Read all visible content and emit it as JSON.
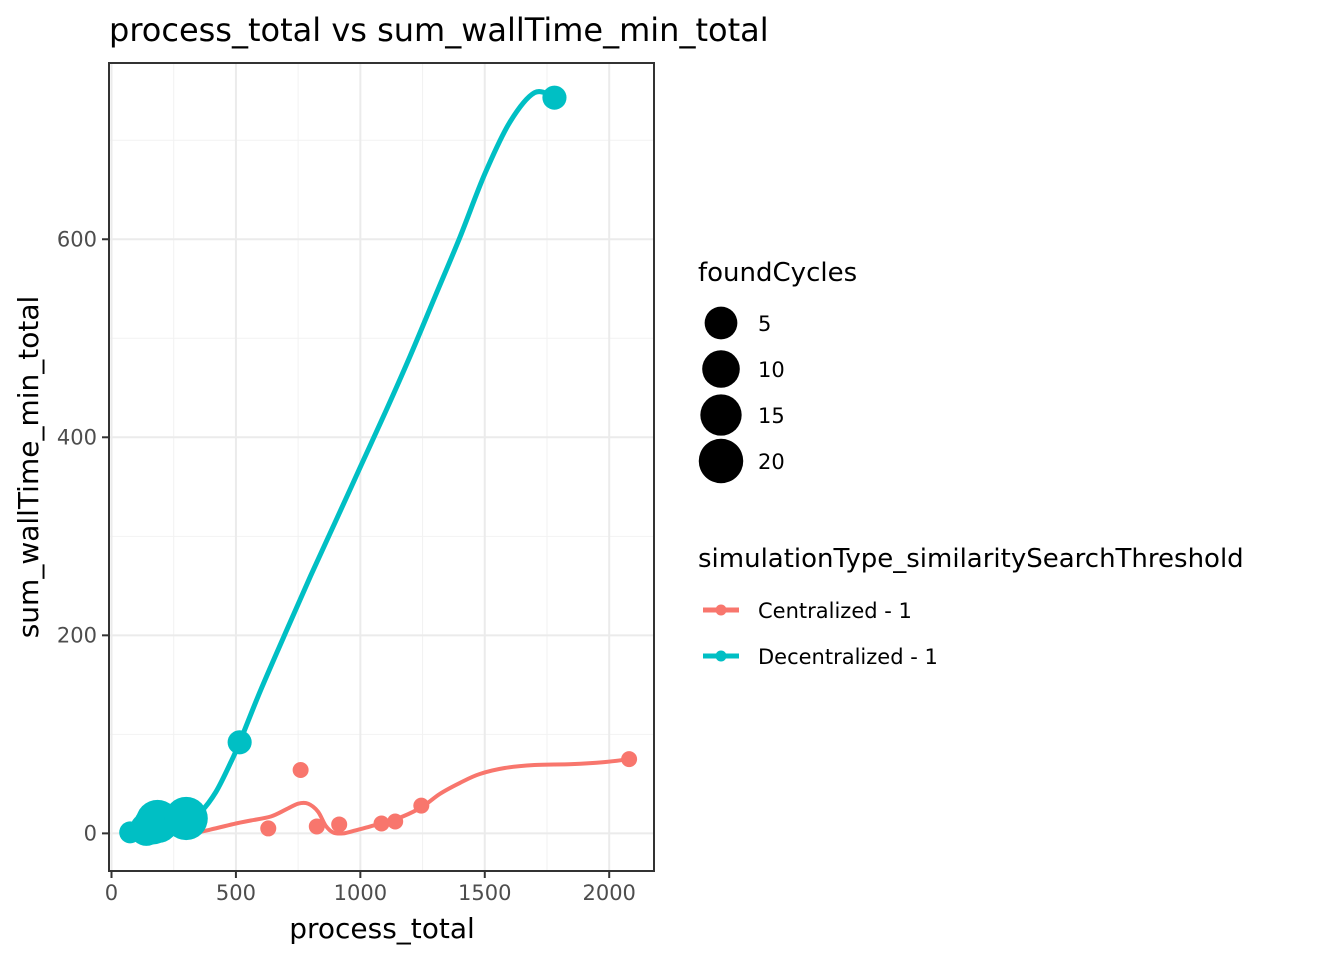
{
  "chart_data": {
    "type": "scatter",
    "title": "process_total  vs  sum_wallTime_min_total",
    "xlabel": "process_total",
    "ylabel": "sum_wallTime_min_total",
    "xlim": [
      -10,
      2180
    ],
    "ylim": [
      -38,
      778
    ],
    "x_ticks": [
      0,
      500,
      1000,
      1500,
      2000
    ],
    "y_ticks": [
      0,
      200,
      400,
      600
    ],
    "x_tick_labels": [
      "0",
      "500",
      "1000",
      "1500",
      "2000"
    ],
    "y_tick_labels": [
      "0",
      "200",
      "400",
      "600"
    ],
    "grid": true,
    "size_legend": {
      "title": "foundCycles",
      "entries": [
        {
          "label": "5",
          "value": 5
        },
        {
          "label": "10",
          "value": 10
        },
        {
          "label": "15",
          "value": 15
        },
        {
          "label": "20",
          "value": 20
        }
      ]
    },
    "color_legend": {
      "title": "simulationType_similaritySearchThreshold",
      "placement": "right"
    },
    "series": [
      {
        "name": "Centralized - 1",
        "color": "#F8766D",
        "points": [
          {
            "x": 630,
            "y": 5,
            "size": 1
          },
          {
            "x": 760,
            "y": 64,
            "size": 1
          },
          {
            "x": 825,
            "y": 7,
            "size": 1
          },
          {
            "x": 915,
            "y": 9,
            "size": 1
          },
          {
            "x": 1085,
            "y": 10,
            "size": 1
          },
          {
            "x": 1140,
            "y": 12,
            "size": 1
          },
          {
            "x": 1245,
            "y": 28,
            "size": 1
          },
          {
            "x": 2080,
            "y": 75,
            "size": 1
          }
        ],
        "smooth": [
          [
            330,
            0
          ],
          [
            400,
            4
          ],
          [
            500,
            10
          ],
          [
            560,
            13
          ],
          [
            640,
            17
          ],
          [
            700,
            24
          ],
          [
            750,
            30
          ],
          [
            790,
            30
          ],
          [
            830,
            22
          ],
          [
            860,
            8
          ],
          [
            890,
            1
          ],
          [
            930,
            0
          ],
          [
            980,
            3
          ],
          [
            1040,
            7
          ],
          [
            1100,
            11
          ],
          [
            1170,
            17
          ],
          [
            1250,
            27
          ],
          [
            1320,
            40
          ],
          [
            1400,
            51
          ],
          [
            1480,
            60
          ],
          [
            1580,
            66
          ],
          [
            1700,
            69
          ],
          [
            1850,
            70
          ],
          [
            1980,
            72
          ],
          [
            2080,
            75
          ]
        ]
      },
      {
        "name": "Decentralized - 1",
        "color": "#00BFC4",
        "points": [
          {
            "x": 75,
            "y": 1,
            "size": 2
          },
          {
            "x": 140,
            "y": 4,
            "size": 9
          },
          {
            "x": 165,
            "y": 8,
            "size": 14
          },
          {
            "x": 185,
            "y": 12,
            "size": 20
          },
          {
            "x": 300,
            "y": 15,
            "size": 20
          },
          {
            "x": 515,
            "y": 92,
            "size": 3
          },
          {
            "x": 1780,
            "y": 743,
            "size": 3
          }
        ],
        "smooth": [
          [
            140,
            2
          ],
          [
            200,
            8
          ],
          [
            260,
            13
          ],
          [
            310,
            14
          ],
          [
            360,
            22
          ],
          [
            420,
            42
          ],
          [
            480,
            72
          ],
          [
            515,
            92
          ],
          [
            600,
            145
          ],
          [
            700,
            203
          ],
          [
            800,
            260
          ],
          [
            900,
            315
          ],
          [
            1000,
            370
          ],
          [
            1100,
            425
          ],
          [
            1200,
            482
          ],
          [
            1300,
            542
          ],
          [
            1400,
            602
          ],
          [
            1500,
            666
          ],
          [
            1600,
            718
          ],
          [
            1700,
            748
          ],
          [
            1780,
            743
          ]
        ]
      }
    ]
  }
}
